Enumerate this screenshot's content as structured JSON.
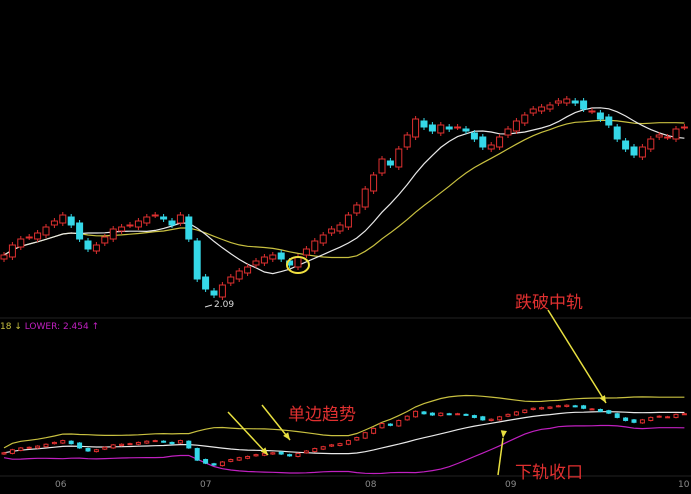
{
  "chart_data": {
    "type": "candlestick",
    "title": "",
    "close": [
      2.34,
      2.39,
      2.42,
      2.43,
      2.45,
      2.48,
      2.51,
      2.54,
      2.49,
      2.42,
      2.37,
      2.39,
      2.43,
      2.47,
      2.48,
      2.49,
      2.51,
      2.53,
      2.54,
      2.52,
      2.49,
      2.54,
      2.42,
      2.22,
      2.17,
      2.14,
      2.19,
      2.23,
      2.26,
      2.28,
      2.31,
      2.33,
      2.34,
      2.32,
      2.29,
      2.33,
      2.37,
      2.41,
      2.44,
      2.47,
      2.49,
      2.54,
      2.59,
      2.67,
      2.74,
      2.82,
      2.79,
      2.87,
      2.94,
      3.02,
      2.98,
      2.96,
      2.99,
      2.97,
      2.98,
      2.96,
      2.92,
      2.88,
      2.89,
      2.93,
      2.97,
      3.01,
      3.04,
      3.07,
      3.08,
      3.09,
      3.11,
      3.12,
      3.1,
      3.07,
      3.06,
      3.02,
      2.99,
      2.92,
      2.87,
      2.84,
      2.88,
      2.92,
      2.94,
      2.93,
      2.97,
      2.98
    ],
    "x_ticks": [
      "06",
      "07",
      "08",
      "09",
      "10"
    ],
    "low_annotation": "2.09",
    "legend_text": "18 ↓",
    "lower_band_label": "LOWER: 2.454 ↑",
    "annotations": [
      "跌破中轨",
      "单边趋势",
      "下轨收口"
    ],
    "grid": false
  },
  "colors": {
    "up": "#e03030",
    "down": "#35d8e8",
    "ma_white": "#e8e8e8",
    "ma_yellow": "#c8c040",
    "upper": "#c8c040",
    "lower": "#c020c0",
    "annotation": "#e03030",
    "arrow": "#e8e040"
  }
}
